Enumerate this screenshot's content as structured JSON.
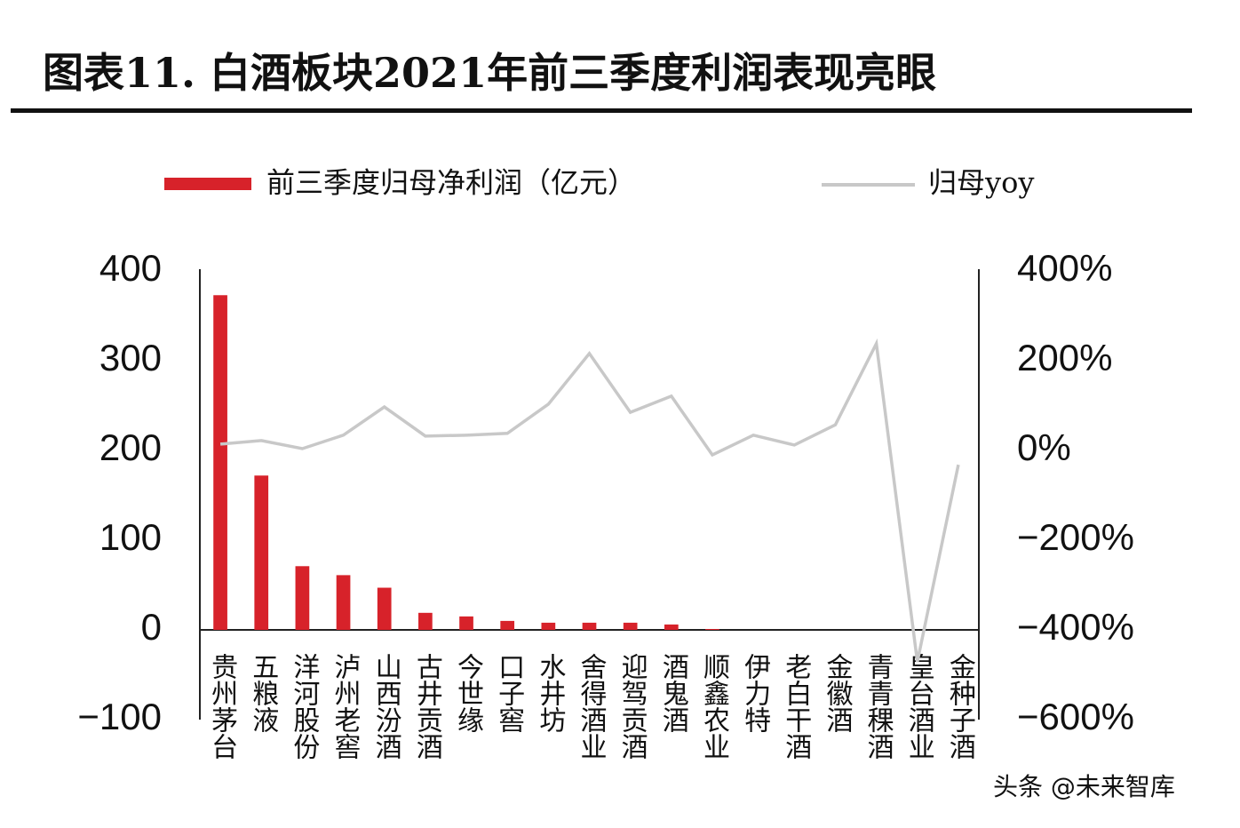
{
  "chart_data": {
    "type": "bar",
    "title": "图表11.  白酒板块2021年前三季度利润表现亮眼",
    "categories": [
      "贵州茅台",
      "五粮液",
      "洋河股份",
      "泸州老窖",
      "山西汾酒",
      "古井贡酒",
      "今世缘",
      "口子窖",
      "水井坊",
      "舍得酒业",
      "迎驾贡酒",
      "酒鬼酒",
      "顺鑫农业",
      "伊力特",
      "老白干酒",
      "金徽酒",
      "青青稞酒",
      "皇台酒业",
      "金种子酒"
    ],
    "series": [
      {
        "name": "前三季度归母净利润（亿元）",
        "type": "bar",
        "color": "#d7222a",
        "values": [
          373,
          172,
          71,
          61,
          47,
          19,
          15,
          10,
          8,
          8,
          8,
          6,
          1,
          0,
          0,
          0,
          0,
          0,
          0
        ]
      },
      {
        "name": "归母yoy",
        "type": "line",
        "axis": "y2",
        "color": "#c8c8c8",
        "values": [
          14,
          22,
          4,
          34,
          97,
          32,
          34,
          38,
          103,
          216,
          85,
          121,
          -10,
          34,
          12,
          57,
          238,
          -471,
          -32
        ]
      }
    ],
    "ylim": [
      -100,
      400
    ],
    "yticks": [
      {
        "value": -100,
        "label": "−100"
      },
      0,
      100,
      200,
      300,
      400
    ],
    "y2lim": [
      -600,
      400
    ],
    "y2ticks": [
      {
        "value": -600,
        "label": "−600%"
      },
      {
        "value": -400,
        "label": "−400%"
      },
      {
        "value": -200,
        "label": "−200%"
      },
      {
        "value": 0,
        "label": "0%"
      },
      {
        "value": 200,
        "label": "200%"
      },
      {
        "value": 400,
        "label": "400%"
      }
    ],
    "grid": false,
    "watermark": "头条 @未来智库"
  }
}
